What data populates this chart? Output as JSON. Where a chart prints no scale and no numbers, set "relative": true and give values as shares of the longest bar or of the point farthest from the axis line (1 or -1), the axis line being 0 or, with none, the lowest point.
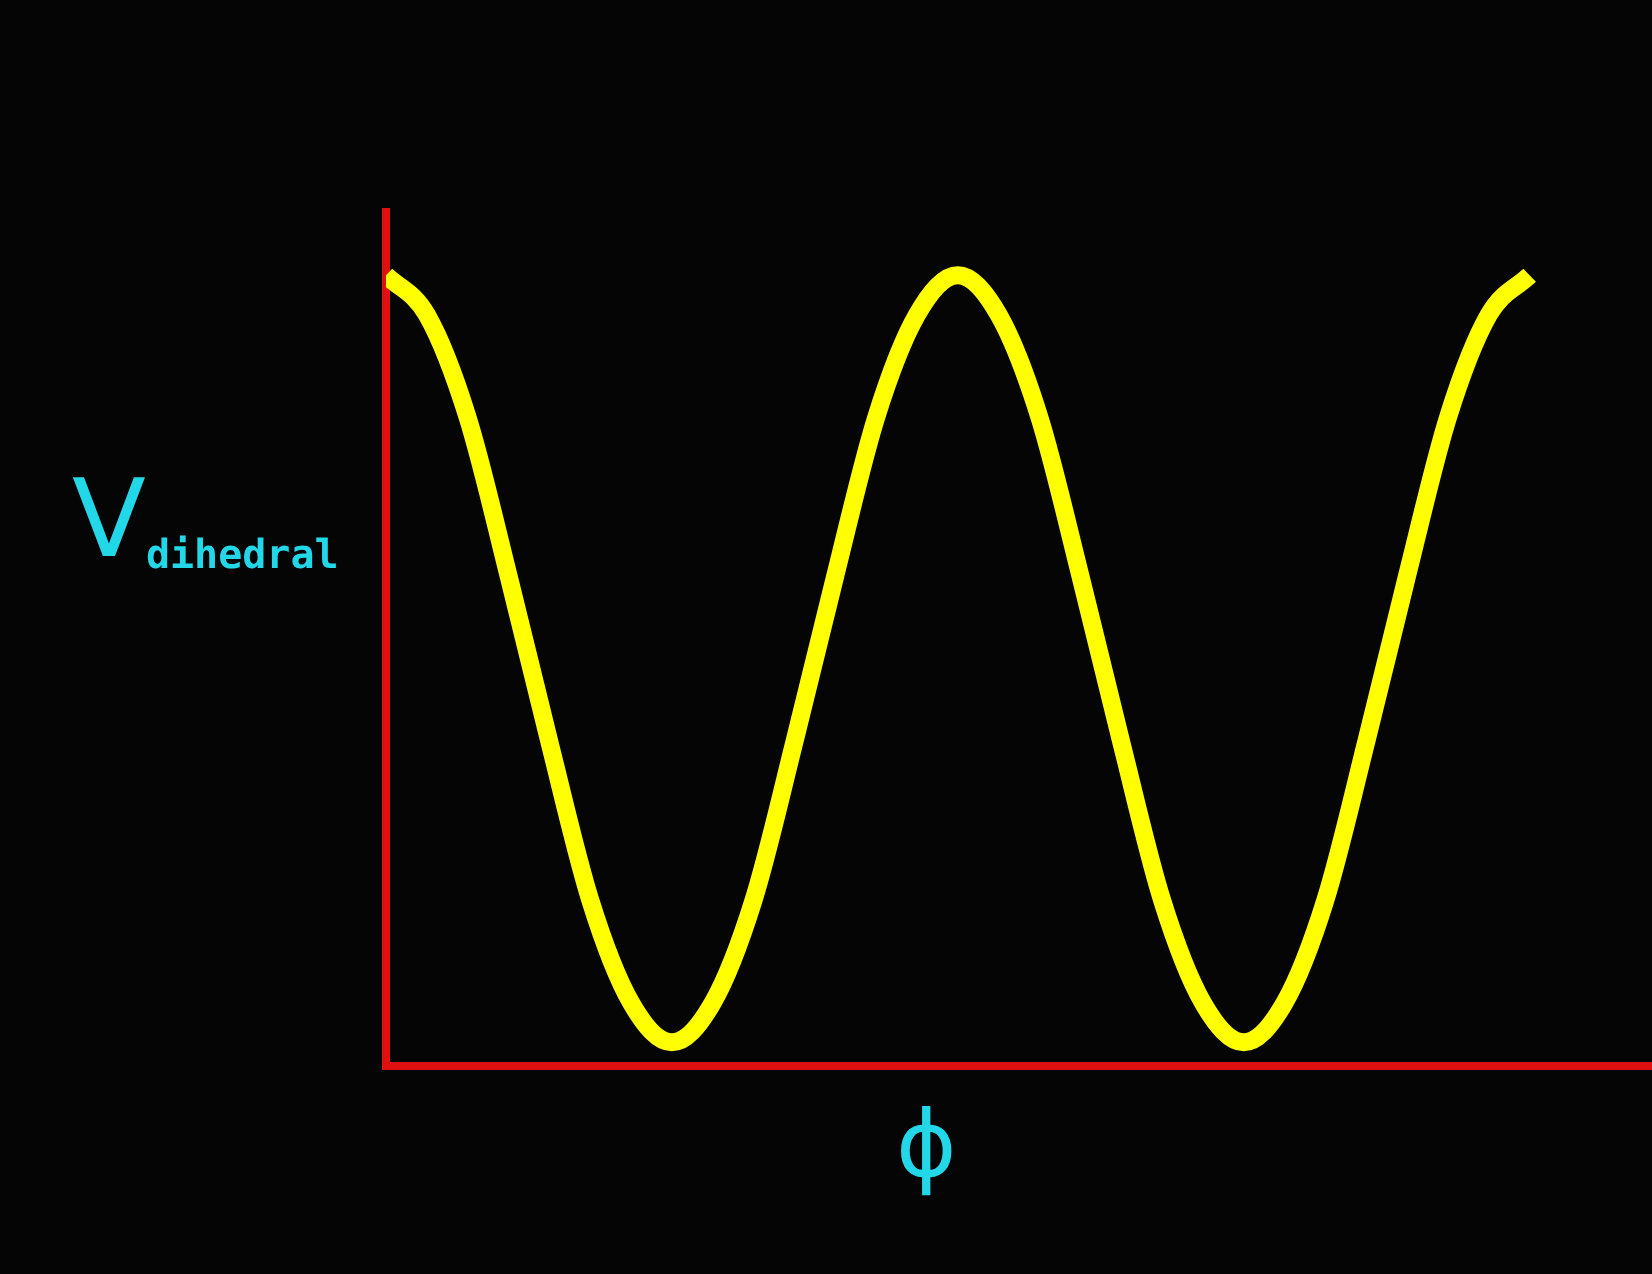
{
  "chart_data": {
    "type": "line",
    "relative": true,
    "xlabel": "ϕ",
    "ylabel": "V$_{dihedral}$",
    "marker": "none",
    "legend": false,
    "categories": [
      null,
      null,
      null,
      null,
      null,
      null,
      null,
      null,
      null,
      null,
      null,
      null,
      null,
      null,
      null,
      null,
      null,
      null,
      null,
      null,
      null,
      null,
      null,
      null,
      null,
      null,
      null,
      null,
      null
    ],
    "series": [
      {
        "color": "#ffff00",
        "values": [
          1,
          0.95,
          0.82,
          0.62,
          0.41,
          0.21,
          0.08,
          0.03,
          0.08,
          0.21,
          0.41,
          0.62,
          0.82,
          0.95,
          1,
          0.95,
          0.82,
          0.62,
          0.41,
          0.21,
          0.08,
          0.03,
          0.08,
          0.21,
          0.41,
          0.62,
          0.82,
          0.95,
          1
        ]
      }
    ]
  }
}
